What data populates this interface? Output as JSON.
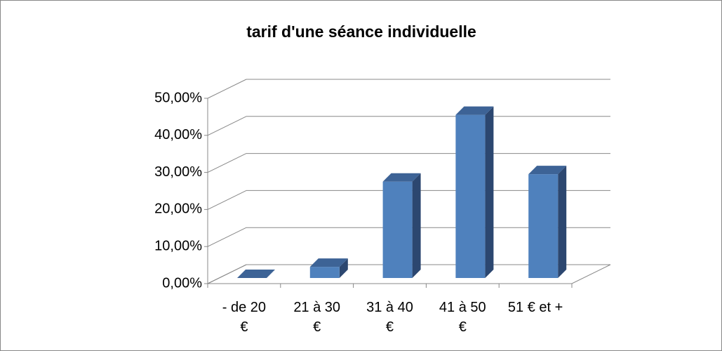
{
  "chart_data": {
    "type": "bar3d",
    "title": "tarif d'une séance individuelle",
    "categories": [
      "- de 20 €",
      "21 à 30 €",
      "31 à 40 €",
      "41 à 50 €",
      "51 € et +"
    ],
    "values": [
      0,
      3,
      26,
      44,
      28
    ],
    "color": "#4f81bd",
    "ylim": [
      0,
      50
    ],
    "yticks": [
      {
        "value": 0,
        "label": "0,00%"
      },
      {
        "value": 10,
        "label": "10,00%"
      },
      {
        "value": 20,
        "label": "20,00%"
      },
      {
        "value": 30,
        "label": "30,00%"
      },
      {
        "value": 40,
        "label": "40,00%"
      },
      {
        "value": 50,
        "label": "50,00%"
      }
    ],
    "grid": true
  }
}
